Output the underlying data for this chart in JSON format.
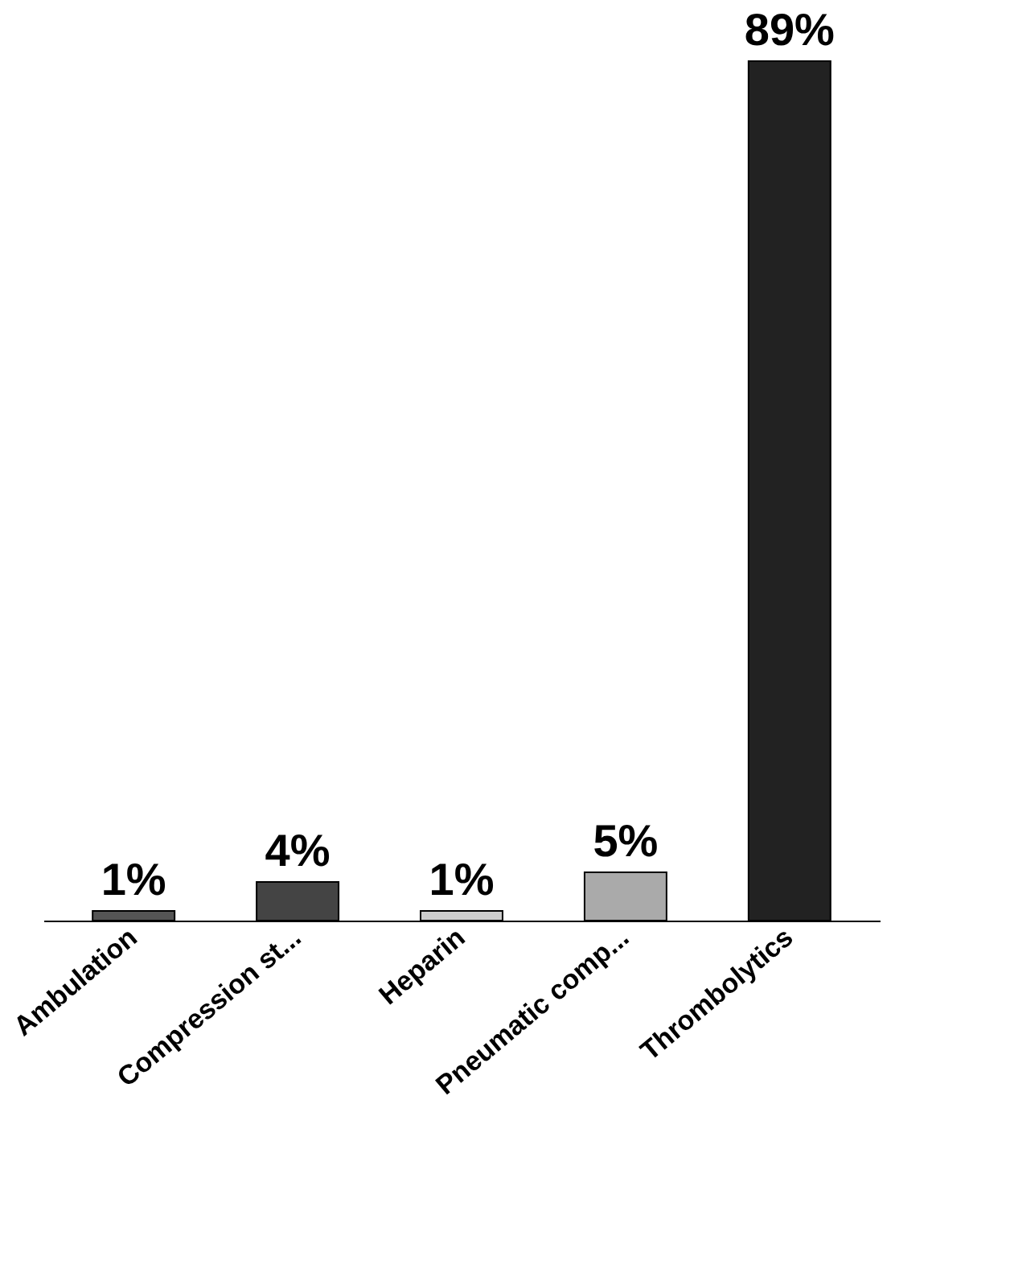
{
  "chart_data": {
    "type": "bar",
    "categories": [
      "Ambulation",
      "Compression st...",
      "Heparin",
      "Pneumatic comp...",
      "Thrombolytics"
    ],
    "values": [
      1,
      4,
      1,
      5,
      89
    ],
    "colors": [
      "#555555",
      "#444444",
      "#cccccc",
      "#aaaaaa",
      "#222222"
    ],
    "value_labels": [
      "1%",
      "4%",
      "1%",
      "5%",
      "89%"
    ],
    "grid": false,
    "legend": false
  }
}
